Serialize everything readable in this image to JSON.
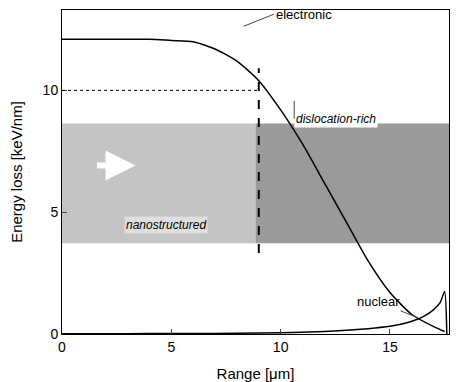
{
  "chart_data": {
    "type": "line",
    "x_label": "Range [μm]",
    "y_label": "Energy loss [keV/nm]",
    "xlim": [
      0,
      17.7
    ],
    "ylim": [
      0,
      13.3
    ],
    "xticks": [
      0,
      5,
      10,
      15
    ],
    "yticks": [
      0,
      5,
      10
    ],
    "grid": false,
    "series": [
      {
        "name": "electronic",
        "color": "#000000",
        "x": [
          0,
          1,
          2,
          3,
          4,
          5,
          6,
          7,
          8,
          9,
          10,
          11,
          12,
          13,
          14,
          15,
          16,
          17,
          17.5
        ],
        "values": [
          12.1,
          12.1,
          12.1,
          12.1,
          12.1,
          12.05,
          12.0,
          11.7,
          11.2,
          10.4,
          9.2,
          7.8,
          6.2,
          4.6,
          3.0,
          1.7,
          0.8,
          0.3,
          0.1
        ]
      },
      {
        "name": "nuclear",
        "color": "#000000",
        "x": [
          0,
          2,
          4,
          6,
          8,
          10,
          12,
          13,
          14,
          15,
          15.5,
          16,
          16.5,
          17,
          17.3,
          17.5,
          17.6
        ],
        "values": [
          0.01,
          0.01,
          0.02,
          0.02,
          0.03,
          0.05,
          0.1,
          0.15,
          0.22,
          0.32,
          0.4,
          0.52,
          0.7,
          1.0,
          1.3,
          1.75,
          0
        ]
      }
    ],
    "reference_lines": {
      "x": 9,
      "y": 10
    },
    "annotations": [
      "nanostructured",
      "dislocation-rich"
    ]
  }
}
